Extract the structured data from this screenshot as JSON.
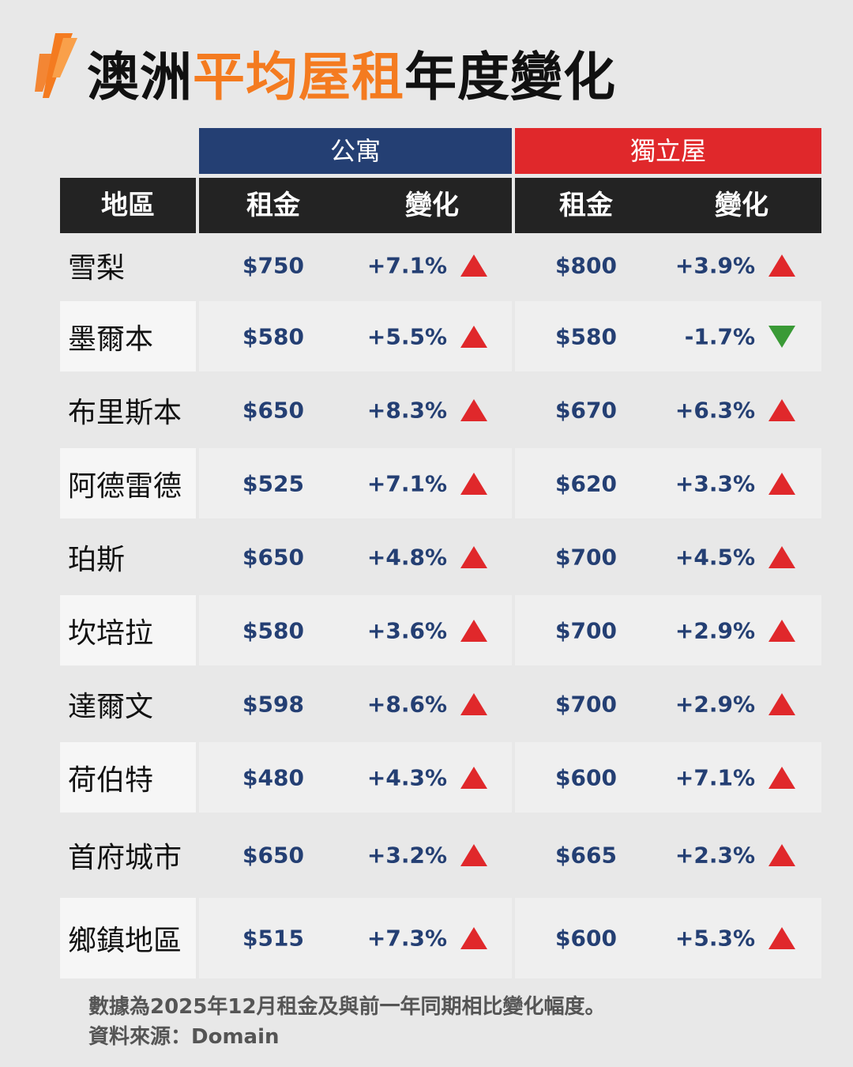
{
  "logo": "sbs-logo",
  "title": {
    "part1": "澳洲",
    "part2": "平均屋租",
    "part3": "年度變化"
  },
  "colors": {
    "accent": "#f47b20",
    "apartment": "#243f73",
    "house": "#e0282b",
    "up": "#e0282b",
    "down": "#3a9a36"
  },
  "groups": {
    "apartment": "公寓",
    "house": "獨立屋"
  },
  "columns": {
    "region": "地區",
    "rent": "租金",
    "change": "變化"
  },
  "chart_data": {
    "type": "table",
    "title": "澳洲平均屋租年度變化",
    "columns": [
      "地區",
      "公寓 租金",
      "公寓 變化",
      "獨立屋 租金",
      "獨立屋 變化"
    ],
    "rows": [
      {
        "city": "雪梨",
        "apt_rent": "$750",
        "apt_change": "+7.1%",
        "apt_dir": "up",
        "house_rent": "$800",
        "house_change": "+3.9%",
        "house_dir": "up"
      },
      {
        "city": "墨爾本",
        "apt_rent": "$580",
        "apt_change": "+5.5%",
        "apt_dir": "up",
        "house_rent": "$580",
        "house_change": "-1.7%",
        "house_dir": "down"
      },
      {
        "city": "布里斯本",
        "apt_rent": "$650",
        "apt_change": "+8.3%",
        "apt_dir": "up",
        "house_rent": "$670",
        "house_change": "+6.3%",
        "house_dir": "up"
      },
      {
        "city": "阿德雷德",
        "apt_rent": "$525",
        "apt_change": "+7.1%",
        "apt_dir": "up",
        "house_rent": "$620",
        "house_change": "+3.3%",
        "house_dir": "up"
      },
      {
        "city": "珀斯",
        "apt_rent": "$650",
        "apt_change": "+4.8%",
        "apt_dir": "up",
        "house_rent": "$700",
        "house_change": "+4.5%",
        "house_dir": "up"
      },
      {
        "city": "坎培拉",
        "apt_rent": "$580",
        "apt_change": "+3.6%",
        "apt_dir": "up",
        "house_rent": "$700",
        "house_change": "+2.9%",
        "house_dir": "up"
      },
      {
        "city": "達爾文",
        "apt_rent": "$598",
        "apt_change": "+8.6%",
        "apt_dir": "up",
        "house_rent": "$700",
        "house_change": "+2.9%",
        "house_dir": "up"
      },
      {
        "city": "荷伯特",
        "apt_rent": "$480",
        "apt_change": "+4.3%",
        "apt_dir": "up",
        "house_rent": "$600",
        "house_change": "+7.1%",
        "house_dir": "up"
      },
      {
        "city": "首府城市",
        "apt_rent": "$650",
        "apt_change": "+3.2%",
        "apt_dir": "up",
        "house_rent": "$665",
        "house_change": "+2.3%",
        "house_dir": "up"
      },
      {
        "city": "鄉鎮地區",
        "apt_rent": "$515",
        "apt_change": "+7.3%",
        "apt_dir": "up",
        "house_rent": "$600",
        "house_change": "+5.3%",
        "house_dir": "up"
      }
    ]
  },
  "footnote": {
    "line1": "數據為2025年12月租金及與前一年同期相比變化幅度。",
    "line2": "資料來源：Domain"
  }
}
